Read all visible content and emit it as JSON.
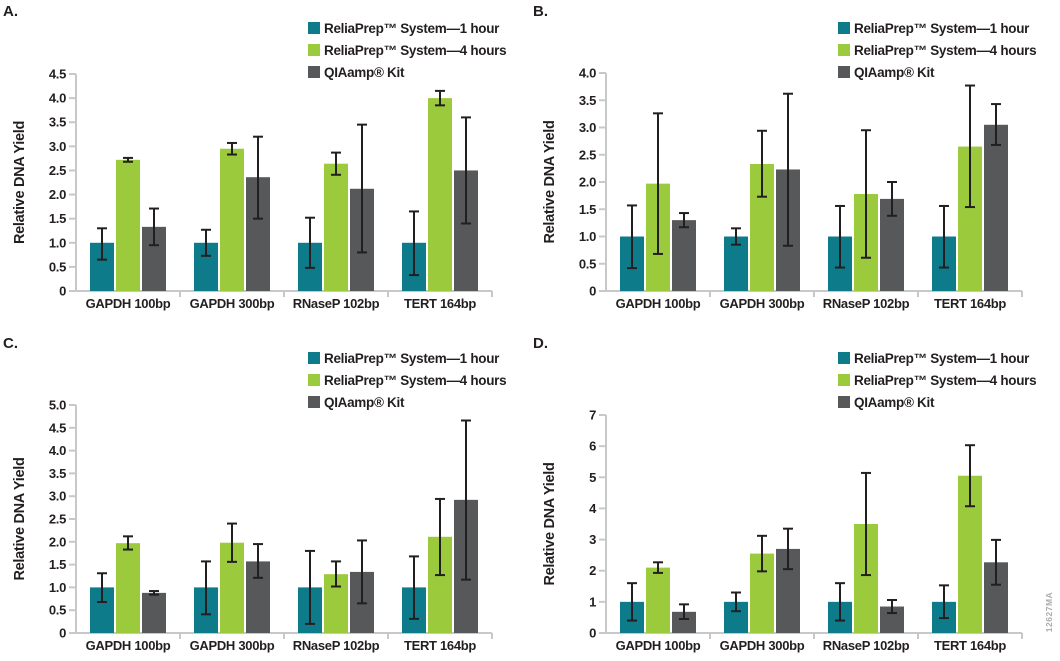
{
  "watermark": "12627MA",
  "colors": {
    "teal": "#0e7b8b",
    "green": "#9cca3d",
    "gray": "#575859",
    "axis_gray": "#c7c8ca",
    "error_bar": "#231f20",
    "text": "#231f20",
    "watermark_gray": "#a9abae"
  },
  "legend": [
    {
      "label": "ReliaPrep™ System—1 hour",
      "color_key": "teal"
    },
    {
      "label": "ReliaPrep™ System—4 hours",
      "color_key": "green"
    },
    {
      "label": "QIAamp® Kit",
      "color_key": "gray"
    }
  ],
  "ylabel": "Relative DNA Yield",
  "categories": [
    "GAPDH 100bp",
    "GAPDH 300bp",
    "RNaseP 102bp",
    "TERT 164bp"
  ],
  "chart_data": [
    {
      "panel": "A.",
      "type": "bar",
      "ylabel": "Relative DNA Yield",
      "xlabel": "",
      "ylim": [
        0,
        4.5
      ],
      "yticks": [
        "0",
        "0.5",
        "1.0",
        "1.5",
        "2.0",
        "2.5",
        "3.0",
        "3.5",
        "4.0",
        "4.5"
      ],
      "grid": false,
      "legend_position": "top-right",
      "categories": [
        "GAPDH 100bp",
        "GAPDH 300bp",
        "RNaseP 102bp",
        "TERT 164bp"
      ],
      "series": [
        {
          "name": "ReliaPrep™ System—1 hour",
          "color_key": "teal",
          "values": [
            1.0,
            1.0,
            1.0,
            1.0
          ],
          "err_lo": [
            0.65,
            0.73,
            0.48,
            0.33
          ],
          "err_hi": [
            1.3,
            1.27,
            1.52,
            1.65
          ]
        },
        {
          "name": "ReliaPrep™ System—4 hours",
          "color_key": "green",
          "values": [
            2.72,
            2.95,
            2.64,
            4.0
          ],
          "err_lo": [
            2.68,
            2.83,
            2.41,
            3.85
          ],
          "err_hi": [
            2.76,
            3.07,
            2.87,
            4.15
          ]
        },
        {
          "name": "QIAamp® Kit",
          "color_key": "gray",
          "values": [
            1.33,
            2.36,
            2.12,
            2.5
          ],
          "err_lo": [
            0.95,
            1.5,
            0.8,
            1.4
          ],
          "err_hi": [
            1.71,
            3.2,
            3.45,
            3.6
          ]
        }
      ]
    },
    {
      "panel": "B.",
      "type": "bar",
      "ylabel": "Relative DNA Yield",
      "xlabel": "",
      "ylim": [
        0,
        4.0
      ],
      "yticks": [
        "0",
        "0.5",
        "1.0",
        "1.5",
        "2.0",
        "2.5",
        "3.0",
        "3.5",
        "4.0"
      ],
      "grid": false,
      "legend_position": "top-right",
      "categories": [
        "GAPDH 100bp",
        "GAPDH 300bp",
        "RNaseP 102bp",
        "TERT 164bp"
      ],
      "series": [
        {
          "name": "ReliaPrep™ System—1 hour",
          "color_key": "teal",
          "values": [
            1.0,
            1.0,
            1.0,
            1.0
          ],
          "err_lo": [
            0.42,
            0.85,
            0.43,
            0.43
          ],
          "err_hi": [
            1.57,
            1.15,
            1.56,
            1.56
          ]
        },
        {
          "name": "ReliaPrep™ System—4 hours",
          "color_key": "green",
          "values": [
            1.97,
            2.33,
            1.78,
            2.65
          ],
          "err_lo": [
            0.68,
            1.73,
            0.61,
            1.54
          ],
          "err_hi": [
            3.26,
            2.94,
            2.95,
            3.77
          ]
        },
        {
          "name": "QIAamp® Kit",
          "color_key": "gray",
          "values": [
            1.3,
            2.23,
            1.69,
            3.05
          ],
          "err_lo": [
            1.17,
            0.83,
            1.38,
            2.68
          ],
          "err_hi": [
            1.43,
            3.62,
            2.0,
            3.43
          ]
        }
      ]
    },
    {
      "panel": "C.",
      "type": "bar",
      "ylabel": "Relative DNA Yield",
      "xlabel": "",
      "ylim": [
        0,
        5.0
      ],
      "yticks": [
        "0",
        "0.5",
        "1.0",
        "1.5",
        "2.0",
        "2.5",
        "3.0",
        "3.5",
        "4.0",
        "4.5",
        "5.0"
      ],
      "grid": false,
      "legend_position": "top-right",
      "categories": [
        "GAPDH 100bp",
        "GAPDH 300bp",
        "RNaseP 102bp",
        "TERT 164bp"
      ],
      "series": [
        {
          "name": "ReliaPrep™ System—1 hour",
          "color_key": "teal",
          "values": [
            1.0,
            1.0,
            1.0,
            1.0
          ],
          "err_lo": [
            0.68,
            0.41,
            0.2,
            0.31
          ],
          "err_hi": [
            1.31,
            1.57,
            1.8,
            1.68
          ]
        },
        {
          "name": "ReliaPrep™ System—4 hours",
          "color_key": "green",
          "values": [
            1.97,
            1.98,
            1.29,
            2.11
          ],
          "err_lo": [
            1.83,
            1.56,
            1.02,
            1.27
          ],
          "err_hi": [
            2.12,
            2.4,
            1.57,
            2.94
          ]
        },
        {
          "name": "QIAamp® Kit",
          "color_key": "gray",
          "values": [
            0.88,
            1.57,
            1.34,
            2.92
          ],
          "err_lo": [
            0.84,
            1.21,
            0.65,
            1.17
          ],
          "err_hi": [
            0.92,
            1.95,
            2.03,
            4.66
          ]
        }
      ]
    },
    {
      "panel": "D.",
      "type": "bar",
      "ylabel": "Relative DNA Yield",
      "xlabel": "",
      "ylim": [
        0,
        7
      ],
      "yticks": [
        "0",
        "1",
        "2",
        "3",
        "4",
        "5",
        "6",
        "7"
      ],
      "grid": false,
      "legend_position": "top-right",
      "categories": [
        "GAPDH 100bp",
        "GAPDH 300bp",
        "RNaseP 102bp",
        "TERT 164bp"
      ],
      "series": [
        {
          "name": "ReliaPrep™ System—1 hour",
          "color_key": "teal",
          "values": [
            1.0,
            1.0,
            1.0,
            1.0
          ],
          "err_lo": [
            0.4,
            0.7,
            0.4,
            0.48
          ],
          "err_hi": [
            1.6,
            1.3,
            1.6,
            1.53
          ]
        },
        {
          "name": "ReliaPrep™ System—4 hours",
          "color_key": "green",
          "values": [
            2.1,
            2.55,
            3.5,
            5.05
          ],
          "err_lo": [
            1.93,
            1.98,
            1.86,
            4.07
          ],
          "err_hi": [
            2.27,
            3.12,
            5.14,
            6.03
          ]
        },
        {
          "name": "QIAamp® Kit",
          "color_key": "gray",
          "values": [
            0.68,
            2.7,
            0.85,
            2.27
          ],
          "err_lo": [
            0.45,
            2.05,
            0.64,
            1.55
          ],
          "err_hi": [
            0.92,
            3.35,
            1.06,
            2.99
          ]
        }
      ]
    }
  ]
}
